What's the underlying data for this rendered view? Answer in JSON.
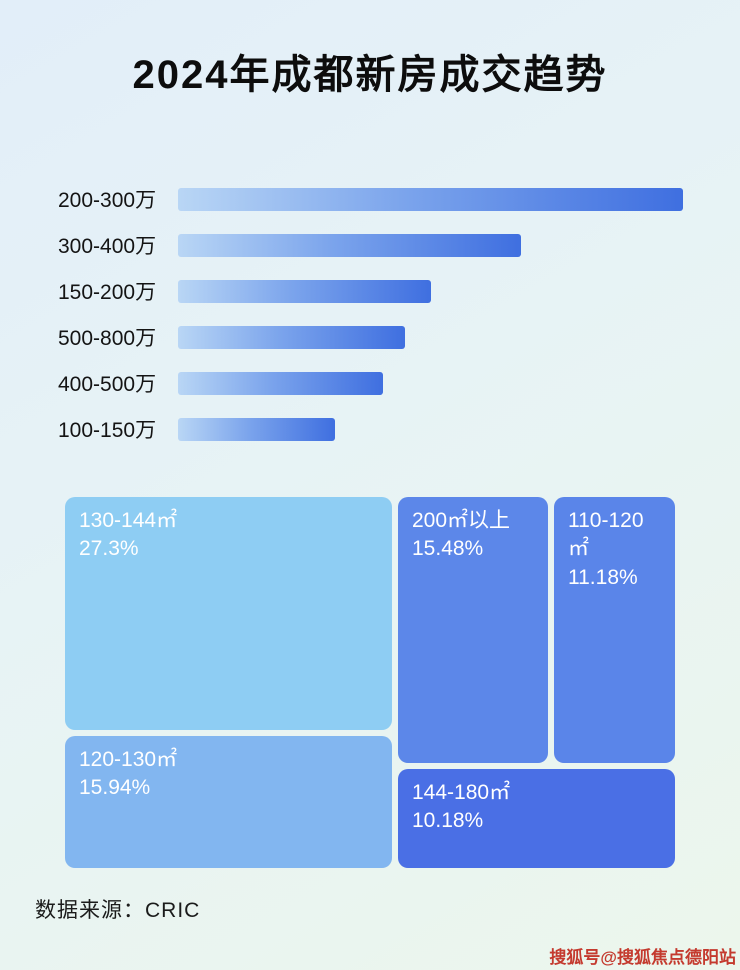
{
  "title": "2024年成都新房成交趋势",
  "footer": {
    "source_label": "数据来源：CRIC"
  },
  "watermark": "搜狐号@搜狐焦点德阳站",
  "colors": {
    "bar_gradient_start": "#b9d6f5",
    "bar_gradient_end": "#3f6fe0",
    "treemap_light": "#8ecdf3",
    "treemap_light2": "#82b6f0",
    "treemap_medium": "#5c87e9",
    "treemap_dark": "#4a6fe5",
    "watermark_red": "#c43a2e"
  },
  "chart_data": [
    {
      "type": "bar",
      "orientation": "horizontal",
      "title": "2024年成都新房成交趋势",
      "categories": [
        "200-300万",
        "300-400万",
        "150-200万",
        "500-800万",
        "400-500万",
        "100-150万"
      ],
      "values": [
        100,
        68,
        50,
        45,
        40.5,
        31
      ],
      "ylim": [
        0,
        100
      ],
      "value_note": "bars carry no numeric labels; values are relative lengths with longest bar = 100",
      "grid": false,
      "legend": false
    },
    {
      "type": "treemap",
      "items": [
        {
          "label": "130-144㎡",
          "value": "27.3%"
        },
        {
          "label": "120-130㎡",
          "value": "15.94%"
        },
        {
          "label": "200㎡以上",
          "value": "15.48%"
        },
        {
          "label": "110-120㎡",
          "value": "11.18%"
        },
        {
          "label": "144-180㎡",
          "value": "10.18%"
        }
      ]
    }
  ]
}
